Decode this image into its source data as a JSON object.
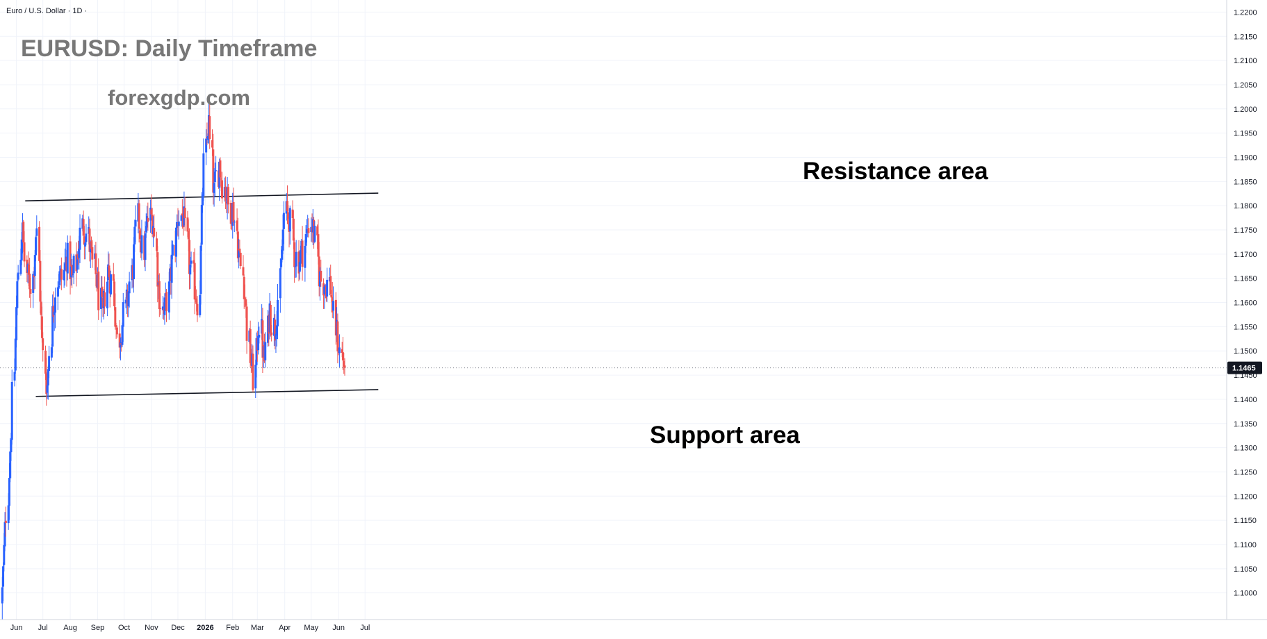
{
  "symbol_header": "Euro / U.S. Dollar · 1D ·",
  "annotations": {
    "title": "EURUSD: Daily Timeframe",
    "site": "forexgdp.com",
    "resistance_label": "Resistance area",
    "support_label": "Support area"
  },
  "colors": {
    "up": "#2962ff",
    "down": "#ef5350",
    "grid": "#f0f3fa",
    "axis_text": "#131722",
    "price_tag_bg": "#131722",
    "title_gray": "#777777",
    "trendline": "#131722"
  },
  "chart_data": {
    "type": "candlestick",
    "y_range": [
      1.0945,
      1.2225
    ],
    "y_ticks": [
      "1.1000",
      "1.1050",
      "1.1100",
      "1.1150",
      "1.1200",
      "1.1250",
      "1.1300",
      "1.1350",
      "1.1400",
      "1.1450",
      "1.1500",
      "1.1550",
      "1.1600",
      "1.1650",
      "1.1700",
      "1.1750",
      "1.1800",
      "1.1850",
      "1.1900",
      "1.1950",
      "1.2000",
      "1.2050",
      "1.2100",
      "1.2150",
      "1.2200"
    ],
    "x_labels": [
      "Jun",
      "Jul",
      "Aug",
      "Sep",
      "Oct",
      "Nov",
      "Dec",
      "2026",
      "Feb",
      "Mar",
      "Apr",
      "May",
      "Jun",
      "Jul"
    ],
    "last_price": "1.1465",
    "resistance_line": {
      "start": [
        "2025-06-14",
        1.181
      ],
      "end": [
        "2026-07-19",
        1.1826
      ]
    },
    "support_line": {
      "start": [
        "2025-06-26",
        1.1406
      ],
      "end": [
        "2026-07-19",
        1.142
      ]
    },
    "series_path": [
      1.1,
      1.117,
      1.135,
      1.16,
      1.176,
      1.165,
      1.164,
      1.176,
      1.152,
      1.142,
      1.157,
      1.165,
      1.165,
      1.17,
      1.164,
      1.17,
      1.176,
      1.174,
      1.168,
      1.164,
      1.156,
      1.167,
      1.164,
      1.152,
      1.156,
      1.161,
      1.168,
      1.178,
      1.17,
      1.177,
      1.178,
      1.164,
      1.157,
      1.162,
      1.17,
      1.178,
      1.178,
      1.169,
      1.164,
      1.16,
      1.187,
      1.198,
      1.182,
      1.189,
      1.184,
      1.18,
      1.179,
      1.17,
      1.164,
      1.15,
      1.144,
      1.157,
      1.147,
      1.159,
      1.154,
      1.163,
      1.178,
      1.178,
      1.17,
      1.169,
      1.172,
      1.177,
      1.174,
      1.165,
      1.164,
      1.164,
      1.155,
      1.15,
      1.147
    ],
    "candle_count": 279
  }
}
